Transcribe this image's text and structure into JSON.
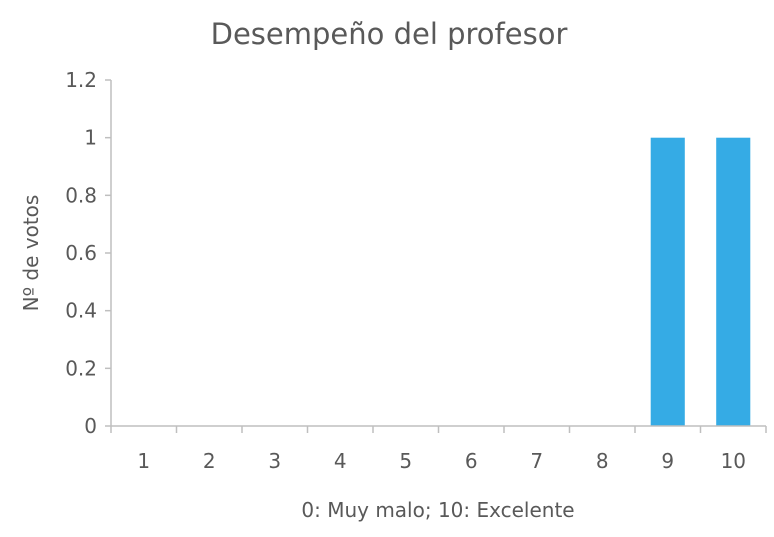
{
  "chart_data": {
    "type": "bar",
    "title": "Desempeño del profesor",
    "xlabel": "0: Muy malo; 10: Excelente",
    "ylabel": "Nº de votos",
    "categories": [
      "1",
      "2",
      "3",
      "4",
      "5",
      "6",
      "7",
      "8",
      "9",
      "10"
    ],
    "values": [
      0,
      0,
      0,
      0,
      0,
      0,
      0,
      0,
      1,
      1
    ],
    "ylim": [
      0,
      1.2
    ],
    "yticks": [
      "0",
      "0.2",
      "0.4",
      "0.6",
      "0.8",
      "1",
      "1.2"
    ],
    "grid": false,
    "legend": "none",
    "bar_color": "#35ABE5",
    "axis_color": "#BFBFBF",
    "text_color": "#595959"
  }
}
